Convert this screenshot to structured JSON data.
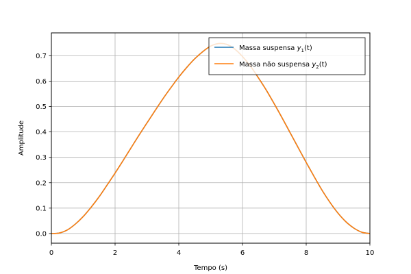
{
  "chart_data": {
    "type": "line",
    "title": "",
    "xlabel": "Tempo (s)",
    "ylabel": "Amplitude",
    "xlim": [
      0,
      10
    ],
    "ylim": [
      -0.038,
      0.79
    ],
    "xticks": [
      0,
      2,
      4,
      6,
      8,
      10
    ],
    "xtick_labels": [
      "0",
      "2",
      "4",
      "6",
      "8",
      "10"
    ],
    "yticks": [
      0.0,
      0.1,
      0.2,
      0.3,
      0.4,
      0.5,
      0.6,
      0.7
    ],
    "ytick_labels": [
      "0.0",
      "0.1",
      "0.2",
      "0.3",
      "0.4",
      "0.5",
      "0.6",
      "0.7"
    ],
    "grid": true,
    "legend_position": "top-right",
    "x": [
      0,
      0.25,
      0.5,
      0.75,
      1,
      1.25,
      1.5,
      1.75,
      2,
      2.25,
      2.5,
      2.75,
      3,
      3.25,
      3.5,
      3.75,
      4,
      4.25,
      4.5,
      4.75,
      5,
      5.25,
      5.5,
      5.75,
      6,
      6.25,
      6.5,
      6.75,
      7,
      7.25,
      7.5,
      7.75,
      8,
      8.25,
      8.5,
      8.75,
      9,
      9.25,
      9.5,
      9.75,
      10
    ],
    "series": [
      {
        "name": "Massa suspensa $y_1(t)$",
        "legend_text": "Massa suspensa ",
        "legend_math": "y",
        "legend_sub": "1",
        "legend_suffix": "(t)",
        "color": "#1f77b4",
        "values": [
          0.0,
          0.002,
          0.014,
          0.037,
          0.067,
          0.104,
          0.145,
          0.191,
          0.238,
          0.287,
          0.337,
          0.387,
          0.435,
          0.483,
          0.53,
          0.574,
          0.616,
          0.654,
          0.688,
          0.716,
          0.738,
          0.748,
          0.745,
          0.727,
          0.697,
          0.659,
          0.613,
          0.564,
          0.51,
          0.454,
          0.396,
          0.338,
          0.28,
          0.224,
          0.17,
          0.122,
          0.08,
          0.046,
          0.021,
          0.005,
          0.0
        ]
      },
      {
        "name": "Massa não suspensa $y_2(t)$",
        "legend_text": "Massa não suspensa ",
        "legend_math": "y",
        "legend_sub": "2",
        "legend_suffix": "(t)",
        "color": "#ff7f0e",
        "values": [
          0.0,
          0.002,
          0.014,
          0.037,
          0.067,
          0.104,
          0.145,
          0.191,
          0.238,
          0.287,
          0.337,
          0.387,
          0.435,
          0.483,
          0.53,
          0.574,
          0.616,
          0.654,
          0.688,
          0.716,
          0.738,
          0.748,
          0.745,
          0.727,
          0.697,
          0.659,
          0.613,
          0.564,
          0.51,
          0.454,
          0.396,
          0.338,
          0.28,
          0.224,
          0.17,
          0.122,
          0.08,
          0.046,
          0.021,
          0.005,
          0.0
        ]
      }
    ]
  }
}
